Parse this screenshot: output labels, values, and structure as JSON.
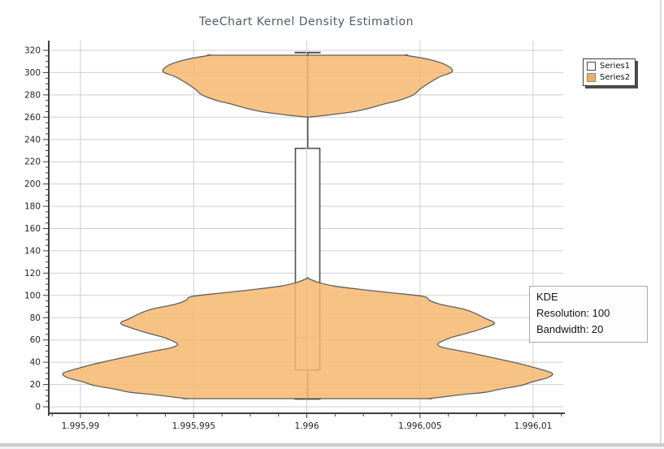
{
  "window": {
    "right_border_color": "#dadadb",
    "bottom_bar_color": "#cbcccf"
  },
  "chart_data": {
    "type": "violin",
    "title": "TeeChart Kernel Density Estimation",
    "title_color": "#4e5d6b",
    "grid": true,
    "legend_position": "top-right",
    "legend": {
      "entries": [
        {
          "label": "Series1",
          "fill": "#ffffff",
          "border": "#4a4a4a"
        },
        {
          "label": "Series2",
          "fill": "#efae63",
          "border": "#8a8a8a"
        }
      ]
    },
    "annotation": {
      "lines": [
        "KDE",
        "Resolution: 100",
        "Bandwidth: 20"
      ],
      "kde_resolution": 100,
      "kde_bandwidth": 20
    },
    "y_axis": {
      "min": 0,
      "max": 320,
      "step": 20,
      "minors_per_major": 3,
      "tick_labels": [
        "0",
        "20",
        "40",
        "60",
        "80",
        "100",
        "120",
        "140",
        "160",
        "180",
        "200",
        "220",
        "240",
        "260",
        "280",
        "300",
        "320"
      ]
    },
    "x_axis": {
      "tick_labels": [
        "1.995,99",
        "1.995,995",
        "1.996",
        "1.996,005",
        "1.996,01"
      ],
      "tick_values": [
        1995.99,
        1995.995,
        1996,
        1996.005,
        1996.01
      ],
      "minors_per_major": 3
    },
    "series": [
      {
        "name": "Series1",
        "type": "boxplot",
        "x_value": 1996,
        "stats": {
          "min": 7,
          "q1": 33,
          "median": 62,
          "q3": 232,
          "max": 318
        },
        "fill": "#ffffff",
        "stroke": "#4f4f4f",
        "median_style": "dotted"
      },
      {
        "name": "Series2",
        "type": "kde-violin",
        "x_value": 1996,
        "fill": "#f4b870",
        "fill_opacity": 0.85,
        "stroke": "#585858",
        "density_peaks_at_values": [
          30,
          75,
          300
        ],
        "profile_upper_value_halfwidth": [
          [
            315.6,
            120
          ],
          [
            312,
            148
          ],
          [
            307,
            170
          ],
          [
            301,
            178
          ],
          [
            296,
            162
          ],
          [
            290,
            148
          ],
          [
            285,
            138
          ],
          [
            280,
            130
          ],
          [
            275,
            112
          ],
          [
            272,
            95
          ],
          [
            268,
            76
          ],
          [
            265,
            57
          ],
          [
            262.5,
            32
          ],
          [
            261,
            14
          ],
          [
            260,
            0
          ]
        ],
        "profile_lower_value_halfwidth": [
          [
            115.5,
            0
          ],
          [
            112,
            12
          ],
          [
            108.5,
            32
          ],
          [
            105,
            70
          ],
          [
            102,
            108
          ],
          [
            99,
            143
          ],
          [
            95.5,
            150
          ],
          [
            92,
            163
          ],
          [
            88,
            190
          ],
          [
            84,
            206
          ],
          [
            79.5,
            218
          ],
          [
            75,
            230
          ],
          [
            70.5,
            216
          ],
          [
            66,
            196
          ],
          [
            62,
            176
          ],
          [
            59,
            166
          ],
          [
            56,
            160
          ],
          [
            53,
            168
          ],
          [
            49,
            196
          ],
          [
            44,
            228
          ],
          [
            38.5,
            262
          ],
          [
            34,
            285
          ],
          [
            30,
            301
          ],
          [
            26,
            295
          ],
          [
            22.5,
            277
          ],
          [
            19,
            262
          ],
          [
            16,
            238
          ],
          [
            13,
            218
          ],
          [
            11,
            191
          ],
          [
            8.7,
            165
          ],
          [
            7.3,
            148
          ]
        ]
      }
    ]
  }
}
